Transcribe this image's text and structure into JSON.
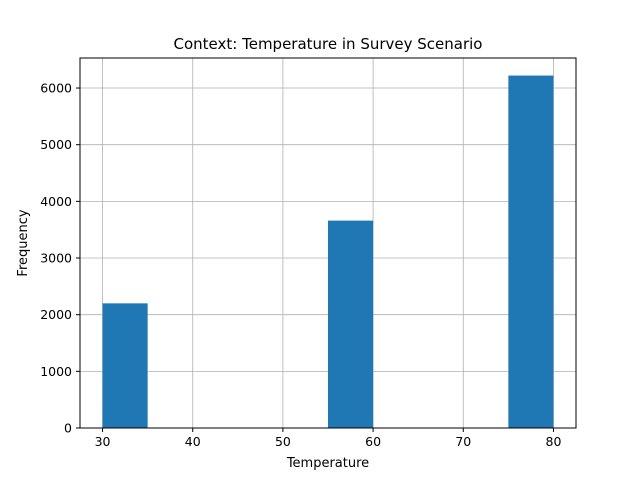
{
  "chart_data": {
    "type": "bar",
    "title": "Context: Temperature in Survey Scenario",
    "xlabel": "Temperature",
    "ylabel": "Frequency",
    "xlim": [
      27.5,
      82.5
    ],
    "ylim": [
      0,
      6530
    ],
    "xticks": [
      30,
      40,
      50,
      60,
      70,
      80
    ],
    "yticks": [
      0,
      1000,
      2000,
      3000,
      4000,
      5000,
      6000
    ],
    "grid": true,
    "bar_color": "#1f77b4",
    "bins": [
      {
        "x0": 30,
        "x1": 35,
        "value": 2200
      },
      {
        "x0": 35,
        "x1": 40,
        "value": 0
      },
      {
        "x0": 40,
        "x1": 45,
        "value": 0
      },
      {
        "x0": 45,
        "x1": 50,
        "value": 0
      },
      {
        "x0": 50,
        "x1": 55,
        "value": 0
      },
      {
        "x0": 55,
        "x1": 60,
        "value": 3660
      },
      {
        "x0": 60,
        "x1": 65,
        "value": 0
      },
      {
        "x0": 65,
        "x1": 70,
        "value": 0
      },
      {
        "x0": 70,
        "x1": 75,
        "value": 0
      },
      {
        "x0": 75,
        "x1": 80,
        "value": 6220
      }
    ]
  }
}
